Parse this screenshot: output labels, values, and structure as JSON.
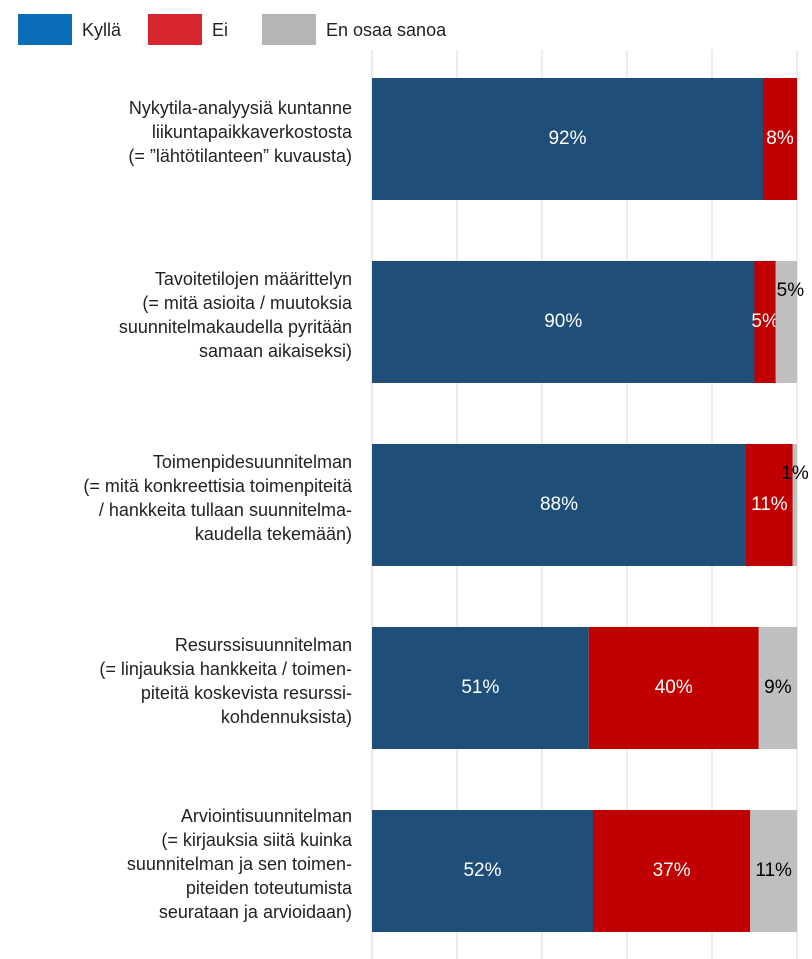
{
  "chart_data": {
    "type": "stacked_barh",
    "categories": [
      "Nykytila-analyysiä kuntanne\nliikuntapaikkaverkostosta\n(= ”lähtötilanteen” kuvausta)",
      "Tavoitetilojen määrittelyn\n(= mitä asioita / muutoksia\nsuunnitelmakaudella pyritään\nsamaan aikaiseksi)",
      "Toimenpidesuunnitelman\n(= mitä konkreettisia toimenpiteitä\n/ hankkeita tullaan suunnitelma-\nkaudella tekemään)",
      "Resurssisuunnitelman\n(= linjauksia hankkeita / toimen-\npiteitä koskevista resurssi-\nkohdennuksista)",
      "Arviointisuunnitelman\n(= kirjauksia siitä kuinka\nsuunnitelman ja sen toimen-\npiteiden toteutumista\nseurataan ja arvioidaan)"
    ],
    "series": [
      {
        "name": "Kyllä",
        "color": "#1f4e79",
        "legend_color": "#0b6db7",
        "label_color": "#ffffff",
        "values": [
          92,
          90,
          88,
          51,
          52
        ],
        "value_labels": [
          "92%",
          "90%",
          "88%",
          "51%",
          "52%"
        ]
      },
      {
        "name": "Ei",
        "color": "#c00000",
        "legend_color": "#d7262f",
        "label_color": "#ffffff",
        "values": [
          8,
          5,
          11,
          40,
          37
        ],
        "value_labels": [
          "8%",
          "5%",
          "11%",
          "40%",
          "37%"
        ]
      },
      {
        "name": "En osaa sanoa",
        "color": "#bfbfbf",
        "legend_color": "#b5b5b5",
        "label_color": "#000000",
        "values": [
          null,
          5,
          1,
          9,
          11
        ],
        "value_labels": [
          null,
          "5%",
          "1%",
          "9%",
          "11%"
        ]
      }
    ],
    "xlim": [
      0,
      100
    ],
    "xticks": [
      0,
      20,
      40,
      60,
      80,
      100
    ],
    "grid": true,
    "legend": "top-left"
  }
}
